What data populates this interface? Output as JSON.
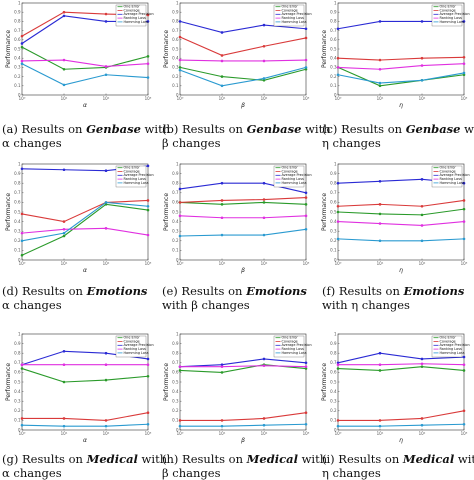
{
  "colors": {
    "one_error": "#2a9a2a",
    "coverage": "#d93a3a",
    "average_precision": "#2a2ad4",
    "ranking_loss": "#e030e0",
    "hamming_loss": "#2a9ad0"
  },
  "legend": [
    "One Error",
    "Coverage",
    "Average Precision",
    "Ranking Loss",
    "Hamming Loss"
  ],
  "chart_data": [
    {
      "type": "line",
      "xlabel": "α",
      "ylabel": "Performance",
      "caption": {
        "label": "(a) Results on",
        "dataset": "Genbase",
        "suffix": " with",
        "line2": "α changes"
      },
      "x": [
        "10⁰",
        "10¹",
        "10²",
        "10³"
      ],
      "yticks": [
        "0",
        "0.1",
        "0.2",
        "0.3",
        "0.4",
        "0.5",
        "0.6",
        "0.7",
        "0.8",
        "0.9",
        "1"
      ],
      "ylim": [
        0,
        1
      ],
      "grid": false,
      "legend_position": "top-right",
      "series": [
        {
          "name": "One Error",
          "color_key": "one_error",
          "values": [
            0.52,
            0.28,
            0.3,
            0.42
          ]
        },
        {
          "name": "Coverage",
          "color_key": "coverage",
          "values": [
            0.64,
            0.9,
            0.88,
            0.87
          ]
        },
        {
          "name": "Average Precision",
          "color_key": "average_precision",
          "values": [
            0.56,
            0.86,
            0.8,
            0.8
          ]
        },
        {
          "name": "Ranking Loss",
          "color_key": "ranking_loss",
          "values": [
            0.37,
            0.38,
            0.31,
            0.34
          ]
        },
        {
          "name": "Hamming Loss",
          "color_key": "hamming_loss",
          "values": [
            0.34,
            0.11,
            0.22,
            0.19
          ]
        }
      ]
    },
    {
      "type": "line",
      "xlabel": "β",
      "ylabel": "Performance",
      "caption": {
        "label": "(b) Results on",
        "dataset": "Genbase",
        "suffix": " with",
        "line2": "β changes"
      },
      "x": [
        "10⁰",
        "10¹",
        "10²",
        "10³"
      ],
      "yticks": [
        "0",
        "0.1",
        "0.2",
        "0.3",
        "0.4",
        "0.5",
        "0.6",
        "0.7",
        "0.8",
        "0.9",
        "1"
      ],
      "ylim": [
        0,
        1
      ],
      "grid": false,
      "legend_position": "top-right",
      "series": [
        {
          "name": "One Error",
          "color_key": "one_error",
          "values": [
            0.3,
            0.2,
            0.16,
            0.28
          ]
        },
        {
          "name": "Coverage",
          "color_key": "coverage",
          "values": [
            0.63,
            0.43,
            0.53,
            0.62
          ]
        },
        {
          "name": "Average Precision",
          "color_key": "average_precision",
          "values": [
            0.8,
            0.68,
            0.76,
            0.72
          ]
        },
        {
          "name": "Ranking Loss",
          "color_key": "ranking_loss",
          "values": [
            0.38,
            0.37,
            0.37,
            0.38
          ]
        },
        {
          "name": "Hamming Loss",
          "color_key": "hamming_loss",
          "values": [
            0.27,
            0.1,
            0.18,
            0.3
          ]
        }
      ]
    },
    {
      "type": "line",
      "xlabel": "η",
      "ylabel": "Performance",
      "caption": {
        "label": "(c) Results on",
        "dataset": "Genbase",
        "suffix": " with",
        "line2": "η changes"
      },
      "x": [
        "10⁰",
        "10¹",
        "10²",
        "10³"
      ],
      "yticks": [
        "0",
        "0.1",
        "0.2",
        "0.3",
        "0.4",
        "0.5",
        "0.6",
        "0.7",
        "0.8",
        "0.9",
        "1"
      ],
      "ylim": [
        0,
        1
      ],
      "grid": false,
      "legend_position": "top-right",
      "series": [
        {
          "name": "One Error",
          "color_key": "one_error",
          "values": [
            0.3,
            0.1,
            0.16,
            0.22
          ]
        },
        {
          "name": "Coverage",
          "color_key": "coverage",
          "values": [
            0.4,
            0.38,
            0.4,
            0.41
          ]
        },
        {
          "name": "Average Precision",
          "color_key": "average_precision",
          "values": [
            0.72,
            0.8,
            0.8,
            0.8
          ]
        },
        {
          "name": "Ranking Loss",
          "color_key": "ranking_loss",
          "values": [
            0.3,
            0.28,
            0.32,
            0.34
          ]
        },
        {
          "name": "Hamming Loss",
          "color_key": "hamming_loss",
          "values": [
            0.22,
            0.13,
            0.16,
            0.24
          ]
        }
      ]
    },
    {
      "type": "line",
      "xlabel": "α",
      "ylabel": "Performance",
      "caption": {
        "label": "(d) Results on",
        "dataset": "Emotions",
        "suffix": "",
        "line2": "α changes"
      },
      "x": [
        "10⁰",
        "10¹",
        "10²",
        "10³"
      ],
      "yticks": [
        "0",
        "0.1",
        "0.2",
        "0.3",
        "0.4",
        "0.5",
        "0.6",
        "0.7",
        "0.8",
        "0.9",
        "1"
      ],
      "ylim": [
        0,
        1
      ],
      "grid": false,
      "legend_position": "top-right",
      "series": [
        {
          "name": "One Error",
          "color_key": "one_error",
          "values": [
            0.05,
            0.25,
            0.58,
            0.52
          ]
        },
        {
          "name": "Coverage",
          "color_key": "coverage",
          "values": [
            0.48,
            0.4,
            0.6,
            0.62
          ]
        },
        {
          "name": "Average Precision",
          "color_key": "average_precision",
          "values": [
            0.95,
            0.94,
            0.93,
            0.98
          ]
        },
        {
          "name": "Ranking Loss",
          "color_key": "ranking_loss",
          "values": [
            0.28,
            0.32,
            0.33,
            0.26
          ]
        },
        {
          "name": "Hamming Loss",
          "color_key": "hamming_loss",
          "values": [
            0.2,
            0.28,
            0.6,
            0.56
          ]
        }
      ]
    },
    {
      "type": "line",
      "xlabel": "β",
      "ylabel": "Performance",
      "caption": {
        "label": "(e) Results on",
        "dataset": "Emotions",
        "suffix": "",
        "line2": "with β changes"
      },
      "x": [
        "10⁰",
        "10¹",
        "10²",
        "10³"
      ],
      "yticks": [
        "0",
        "0.1",
        "0.2",
        "0.3",
        "0.4",
        "0.5",
        "0.6",
        "0.7",
        "0.8",
        "0.9",
        "1"
      ],
      "ylim": [
        0,
        1
      ],
      "grid": false,
      "legend_position": "top-right",
      "series": [
        {
          "name": "One Error",
          "color_key": "one_error",
          "values": [
            0.6,
            0.58,
            0.6,
            0.58
          ]
        },
        {
          "name": "Coverage",
          "color_key": "coverage",
          "values": [
            0.6,
            0.62,
            0.63,
            0.65
          ]
        },
        {
          "name": "Average Precision",
          "color_key": "average_precision",
          "values": [
            0.74,
            0.8,
            0.8,
            0.7
          ]
        },
        {
          "name": "Ranking Loss",
          "color_key": "ranking_loss",
          "values": [
            0.46,
            0.44,
            0.44,
            0.46
          ]
        },
        {
          "name": "Hamming Loss",
          "color_key": "hamming_loss",
          "values": [
            0.25,
            0.26,
            0.26,
            0.32
          ]
        }
      ]
    },
    {
      "type": "line",
      "xlabel": "η",
      "ylabel": "Performance",
      "caption": {
        "label": "(f) Results on",
        "dataset": "Emotions",
        "suffix": "",
        "line2": "with η changes"
      },
      "x": [
        "10⁰",
        "10¹",
        "10²",
        "10³"
      ],
      "yticks": [
        "0",
        "0.1",
        "0.2",
        "0.3",
        "0.4",
        "0.5",
        "0.6",
        "0.7",
        "0.8",
        "0.9",
        "1"
      ],
      "ylim": [
        0,
        1
      ],
      "grid": false,
      "legend_position": "top-right",
      "series": [
        {
          "name": "One Error",
          "color_key": "one_error",
          "values": [
            0.5,
            0.48,
            0.47,
            0.53
          ]
        },
        {
          "name": "Coverage",
          "color_key": "coverage",
          "values": [
            0.56,
            0.58,
            0.56,
            0.62
          ]
        },
        {
          "name": "Average Precision",
          "color_key": "average_precision",
          "values": [
            0.8,
            0.82,
            0.84,
            0.8
          ]
        },
        {
          "name": "Ranking Loss",
          "color_key": "ranking_loss",
          "values": [
            0.4,
            0.38,
            0.36,
            0.4
          ]
        },
        {
          "name": "Hamming Loss",
          "color_key": "hamming_loss",
          "values": [
            0.22,
            0.2,
            0.2,
            0.22
          ]
        }
      ]
    },
    {
      "type": "line",
      "xlabel": "α",
      "ylabel": "Performance",
      "caption": {
        "label": "(g) Results on",
        "dataset": "Medical",
        "suffix": " with",
        "line2": "α changes"
      },
      "x": [
        "10⁰",
        "10¹",
        "10²",
        "10³"
      ],
      "yticks": [
        "0",
        "0.1",
        "0.2",
        "0.3",
        "0.4",
        "0.5",
        "0.6",
        "0.7",
        "0.8",
        "0.9",
        "1"
      ],
      "ylim": [
        0,
        1
      ],
      "grid": false,
      "legend_position": "top-right",
      "series": [
        {
          "name": "One Error",
          "color_key": "one_error",
          "values": [
            0.64,
            0.5,
            0.52,
            0.56
          ]
        },
        {
          "name": "Coverage",
          "color_key": "coverage",
          "values": [
            0.12,
            0.12,
            0.1,
            0.18
          ]
        },
        {
          "name": "Average Precision",
          "color_key": "average_precision",
          "values": [
            0.68,
            0.82,
            0.8,
            0.74
          ]
        },
        {
          "name": "Ranking Loss",
          "color_key": "ranking_loss",
          "values": [
            0.68,
            0.68,
            0.68,
            0.68
          ]
        },
        {
          "name": "Hamming Loss",
          "color_key": "hamming_loss",
          "values": [
            0.05,
            0.04,
            0.04,
            0.06
          ]
        }
      ]
    },
    {
      "type": "line",
      "xlabel": "β",
      "ylabel": "Performance",
      "caption": {
        "label": "(h) Results on",
        "dataset": "Medical",
        "suffix": " with",
        "line2": "β changes"
      },
      "x": [
        "10⁰",
        "10¹",
        "10²",
        "10³"
      ],
      "yticks": [
        "0",
        "0.1",
        "0.2",
        "0.3",
        "0.4",
        "0.5",
        "0.6",
        "0.7",
        "0.8",
        "0.9",
        "1"
      ],
      "ylim": [
        0,
        1
      ],
      "grid": false,
      "legend_position": "top-right",
      "series": [
        {
          "name": "One Error",
          "color_key": "one_error",
          "values": [
            0.62,
            0.6,
            0.68,
            0.64
          ]
        },
        {
          "name": "Coverage",
          "color_key": "coverage",
          "values": [
            0.1,
            0.1,
            0.12,
            0.18
          ]
        },
        {
          "name": "Average Precision",
          "color_key": "average_precision",
          "values": [
            0.66,
            0.68,
            0.74,
            0.7
          ]
        },
        {
          "name": "Ranking Loss",
          "color_key": "ranking_loss",
          "values": [
            0.66,
            0.66,
            0.67,
            0.66
          ]
        },
        {
          "name": "Hamming Loss",
          "color_key": "hamming_loss",
          "values": [
            0.04,
            0.04,
            0.05,
            0.06
          ]
        }
      ]
    },
    {
      "type": "line",
      "xlabel": "η",
      "ylabel": "Performance",
      "caption": {
        "label": "(i) Results on",
        "dataset": "Medical",
        "suffix": " with",
        "line2": "η changes"
      },
      "x": [
        "10⁰",
        "10¹",
        "10²",
        "10³"
      ],
      "yticks": [
        "0",
        "0.1",
        "0.2",
        "0.3",
        "0.4",
        "0.5",
        "0.6",
        "0.7",
        "0.8",
        "0.9",
        "1"
      ],
      "ylim": [
        0,
        1
      ],
      "grid": false,
      "legend_position": "top-right",
      "series": [
        {
          "name": "One Error",
          "color_key": "one_error",
          "values": [
            0.64,
            0.62,
            0.66,
            0.62
          ]
        },
        {
          "name": "Coverage",
          "color_key": "coverage",
          "values": [
            0.1,
            0.1,
            0.12,
            0.2
          ]
        },
        {
          "name": "Average Precision",
          "color_key": "average_precision",
          "values": [
            0.7,
            0.8,
            0.74,
            0.76
          ]
        },
        {
          "name": "Ranking Loss",
          "color_key": "ranking_loss",
          "values": [
            0.68,
            0.68,
            0.69,
            0.68
          ]
        },
        {
          "name": "Hamming Loss",
          "color_key": "hamming_loss",
          "values": [
            0.04,
            0.04,
            0.05,
            0.06
          ]
        }
      ]
    }
  ]
}
